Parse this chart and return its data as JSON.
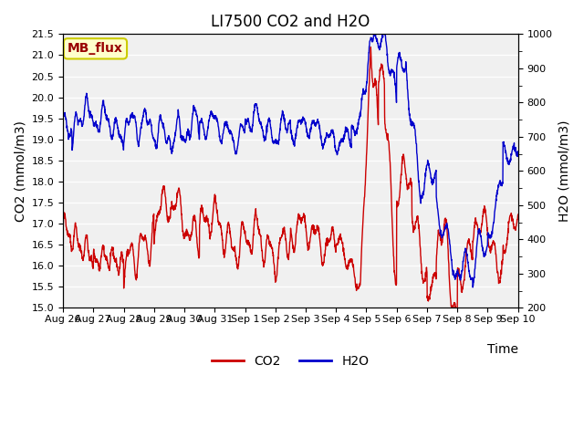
{
  "title": "LI7500 CO2 and H2O",
  "xlabel": "Time",
  "ylabel_left": "CO2 (mmol/m3)",
  "ylabel_right": "H2O (mmol/m3)",
  "ylim_left": [
    15.0,
    21.5
  ],
  "ylim_right": [
    200,
    1000
  ],
  "yticks_left": [
    15.0,
    15.5,
    16.0,
    16.5,
    17.0,
    17.5,
    18.0,
    18.5,
    19.0,
    19.5,
    20.0,
    20.5,
    21.0,
    21.5
  ],
  "yticks_right": [
    200,
    300,
    400,
    500,
    600,
    700,
    800,
    900,
    1000
  ],
  "xtick_labels": [
    "Aug 26",
    "Aug 27",
    "Aug 28",
    "Aug 29",
    "Aug 30",
    "Aug 31",
    "Sep 1",
    "Sep 2",
    "Sep 3",
    "Sep 4",
    "Sep 5",
    "Sep 6",
    "Sep 7",
    "Sep 8",
    "Sep 9",
    "Sep 10"
  ],
  "figure_bg": "#ffffff",
  "plot_bg": "#f0f0f0",
  "grid_color": "#ffffff",
  "co2_color": "#cc0000",
  "h2o_color": "#0000cc",
  "linewidth": 1.0,
  "annotation_text": "MB_flux",
  "annotation_bg": "#ffffcc",
  "annotation_border": "#cccc00",
  "annotation_text_color": "#990000",
  "title_fontsize": 12,
  "axis_label_fontsize": 10,
  "tick_fontsize": 8,
  "legend_fontsize": 10,
  "legend_line_color_co2": "#cc0000",
  "legend_line_color_h2o": "#0000cc"
}
